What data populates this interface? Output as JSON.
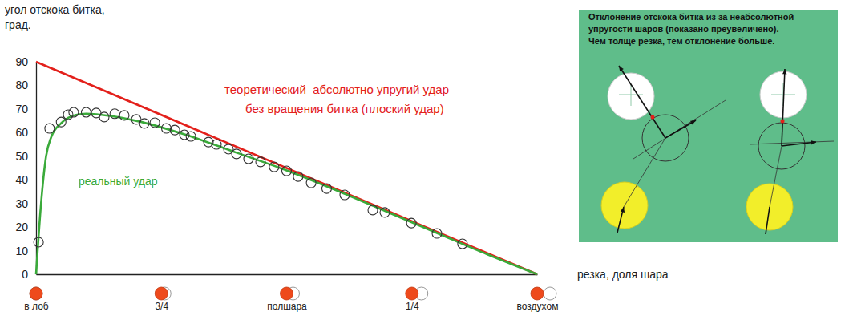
{
  "chart_data": {
    "type": "line",
    "ylabel": [
      "угол отскока битка,",
      "град."
    ],
    "xlabel": "резка, доля шара",
    "xlim": [
      0,
      1
    ],
    "ylim": [
      0,
      90
    ],
    "xticks": [
      {
        "value": 0,
        "label": "в лоб"
      },
      {
        "value": 0.25,
        "label": "3/4"
      },
      {
        "value": 0.5,
        "label": "полшара"
      },
      {
        "value": 0.75,
        "label": "1/4"
      },
      {
        "value": 1,
        "label": "воздухом"
      }
    ],
    "yticks": [
      0,
      10,
      20,
      30,
      40,
      50,
      60,
      70,
      80,
      90
    ],
    "grid": false,
    "annotations": [
      "теоретический  абсолютно упругий удар",
      "без вращения битка (плоский удар)",
      "реальный удар"
    ],
    "series": [
      {
        "type": "line",
        "color": "#e3201b",
        "line_style": "solid",
        "x": [
          0,
          1
        ],
        "values": [
          90,
          0
        ]
      },
      {
        "type": "line",
        "color": "#3aaa3a",
        "line_style": "solid",
        "x": [
          0,
          0.01,
          0.02,
          0.03,
          0.05,
          0.08,
          0.1,
          0.15,
          0.2,
          0.3,
          0.4,
          0.5,
          0.6,
          0.7,
          0.8,
          0.9,
          1
        ],
        "values": [
          0,
          30,
          50,
          58,
          64,
          67.5,
          68,
          67,
          65,
          59,
          51.5,
          44,
          35.5,
          26.5,
          17.5,
          8.5,
          0
        ]
      },
      {
        "type": "scatter",
        "color": "#333333",
        "marker": "circle",
        "x": [
          0.005,
          0.027,
          0.05,
          0.064,
          0.075,
          0.1,
          0.12,
          0.136,
          0.157,
          0.176,
          0.2,
          0.216,
          0.237,
          0.26,
          0.277,
          0.296,
          0.309,
          0.344,
          0.36,
          0.384,
          0.4,
          0.424,
          0.448,
          0.475,
          0.5,
          0.523,
          0.549,
          0.58,
          0.616,
          0.672,
          0.696,
          0.749,
          0.8,
          0.851
        ],
        "values": [
          13.6,
          61.8,
          64.5,
          67.6,
          68.6,
          68.6,
          68.3,
          66.6,
          68,
          67.3,
          65.6,
          63.9,
          64.2,
          61.8,
          61.1,
          59.1,
          58.4,
          56,
          55,
          53,
          51,
          48.9,
          47.6,
          45.5,
          43.8,
          41.4,
          38.7,
          36.3,
          33.6,
          27.2,
          26.2,
          21.7,
          17.3,
          12.9
        ]
      }
    ]
  },
  "panel": {
    "text": [
      "Отклонение отскока битка из за неабсолютной",
      "упругости шаров (показано преувеличено).",
      "Чем толще резка, тем отклонение больше."
    ]
  }
}
